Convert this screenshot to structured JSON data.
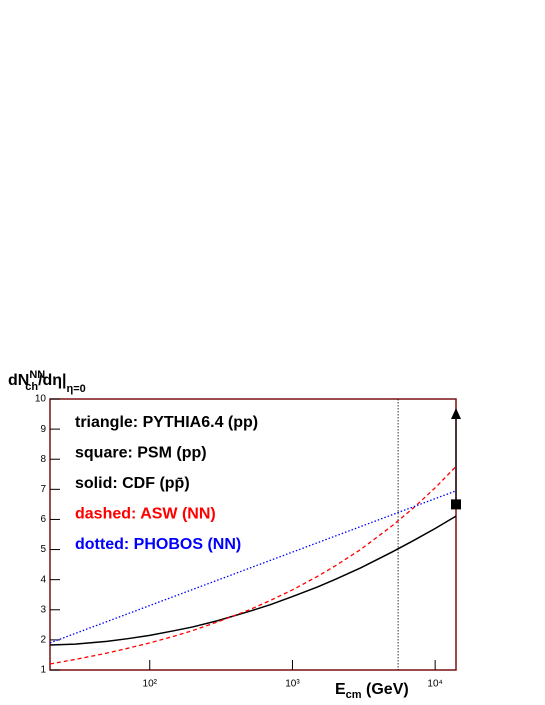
{
  "chart_data": {
    "type": "line",
    "y_label": [
      "dN",
      "NN",
      "ch",
      "/dη|",
      "η=0"
    ],
    "x_label": [
      "E",
      "cm",
      " (GeV)"
    ],
    "x_scale": "log",
    "xlim": [
      20,
      14000
    ],
    "ylim": [
      1,
      10
    ],
    "xticks": [
      {
        "value": 100,
        "label": "10²"
      },
      {
        "value": 1000,
        "label": "10³"
      },
      {
        "value": 10000,
        "label": "10⁴"
      }
    ],
    "yticks": [
      1,
      2,
      3,
      4,
      5,
      6,
      7,
      8,
      9,
      10
    ],
    "vline": 5500,
    "series": [
      {
        "name": "triangle: PYTHIA6.4 (pp)",
        "color": "#000000",
        "style": "triangle",
        "x": [
          14000
        ],
        "values": [
          9.5
        ]
      },
      {
        "name": "square: PSM (pp)",
        "color": "#000000",
        "style": "square",
        "x": [
          14000
        ],
        "values": [
          6.5
        ]
      },
      {
        "name": "solid: CDF (pp̄)",
        "color": "#000000",
        "style": "solid",
        "x": [
          20,
          30,
          50,
          70,
          100,
          150,
          200,
          300,
          500,
          700,
          1000,
          1500,
          2000,
          3000,
          5000,
          7000,
          10000,
          14000
        ],
        "values": [
          1.83,
          1.86,
          1.95,
          2.04,
          2.15,
          2.31,
          2.43,
          2.64,
          2.95,
          3.17,
          3.44,
          3.76,
          4.01,
          4.39,
          4.92,
          5.29,
          5.7,
          6.11
        ]
      },
      {
        "name": "dashed: ASW (NN)",
        "color": "#ff0000",
        "style": "dashed",
        "x": [
          20,
          30,
          50,
          70,
          100,
          150,
          200,
          300,
          500,
          700,
          1000,
          1500,
          2000,
          3000,
          5000,
          7000,
          10000,
          14000
        ],
        "values": [
          1.2,
          1.35,
          1.56,
          1.72,
          1.9,
          2.13,
          2.31,
          2.6,
          3.0,
          3.31,
          3.66,
          4.11,
          4.46,
          5.0,
          5.79,
          6.37,
          7.05,
          7.76
        ]
      },
      {
        "name": "dotted: PHOBOS (NN)",
        "color": "#0000ff",
        "style": "dotted",
        "x": [
          20,
          14000
        ],
        "values": [
          1.9,
          6.95
        ]
      }
    ]
  }
}
